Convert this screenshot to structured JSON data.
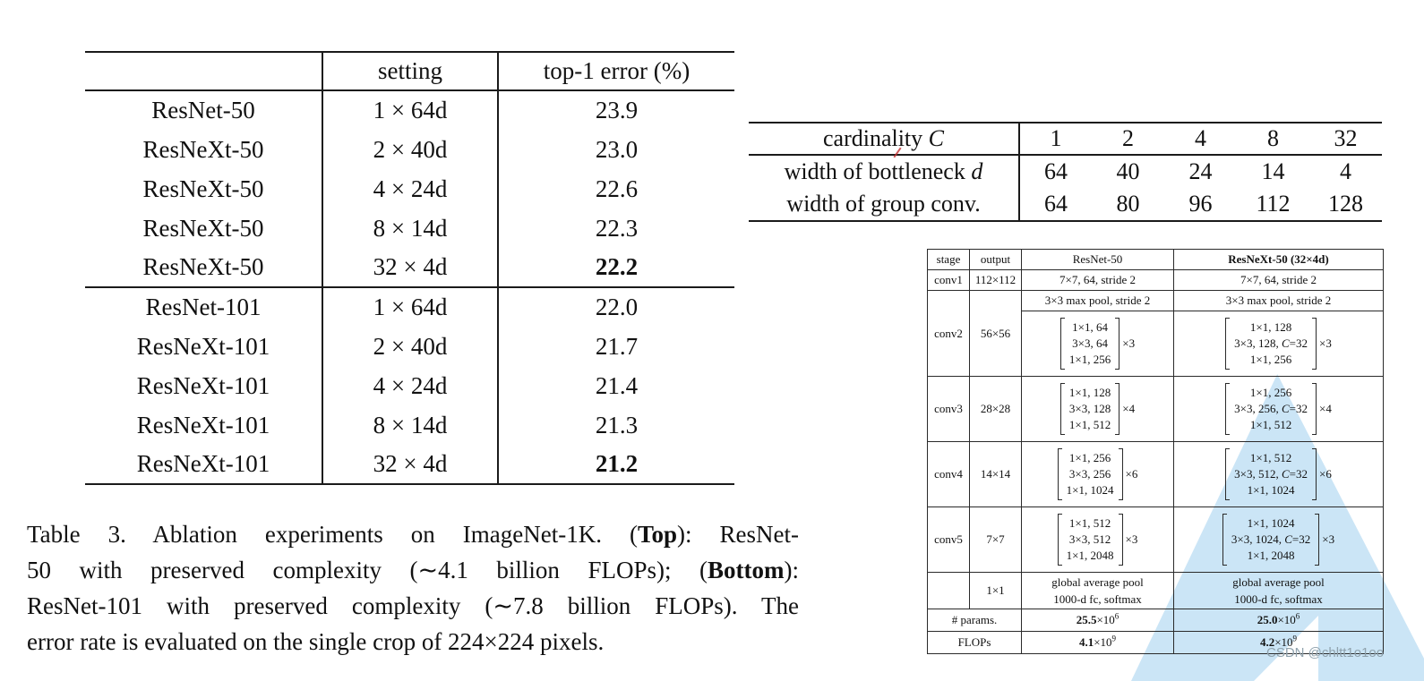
{
  "t3": {
    "header": {
      "setting": "setting",
      "error": "top-1 error (%)"
    },
    "rows": [
      {
        "model": "ResNet-50",
        "setting": "1 × 64d",
        "error": "23.9"
      },
      {
        "model": "ResNeXt-50",
        "setting": "2 × 40d",
        "error": "23.0"
      },
      {
        "model": "ResNeXt-50",
        "setting": "4 × 24d",
        "error": "22.6"
      },
      {
        "model": "ResNeXt-50",
        "setting": "8 × 14d",
        "error": "22.3"
      },
      {
        "model": "ResNeXt-50",
        "setting": "32 × 4d",
        "error": "22.2"
      },
      {
        "model": "ResNet-101",
        "setting": "1 × 64d",
        "error": "22.0"
      },
      {
        "model": "ResNeXt-101",
        "setting": "2 × 40d",
        "error": "21.7"
      },
      {
        "model": "ResNeXt-101",
        "setting": "4 × 24d",
        "error": "21.4"
      },
      {
        "model": "ResNeXt-101",
        "setting": "8 × 14d",
        "error": "21.3"
      },
      {
        "model": "ResNeXt-101",
        "setting": "32 × 4d",
        "error": "21.2"
      }
    ]
  },
  "caption_lines": [
    {
      "pre": "Table 3. Ablation experiments on ImageNet-1K. (",
      "bold": "Top",
      "post": "): ResNet-"
    },
    {
      "pre": "50 with preserved complexity (∼4.1 billion FLOPs); (",
      "bold": "Bottom",
      "post": "):"
    },
    {
      "pre": "ResNet-101 with preserved complexity (∼7.8 billion FLOPs). The",
      "bold": "",
      "post": ""
    },
    {
      "pre": "error rate is evaluated on the single crop of 224×224 pixels.",
      "bold": "",
      "post": ""
    }
  ],
  "card": {
    "rows": [
      {
        "pre": "cardinality ",
        "var": "C",
        "values": [
          "1",
          "2",
          "4",
          "8",
          "32"
        ]
      },
      {
        "pre": "width of bottleneck ",
        "var": "d",
        "values": [
          "64",
          "40",
          "24",
          "14",
          "4"
        ]
      },
      {
        "pre": "width of group conv.",
        "var": "",
        "values": [
          "64",
          "80",
          "96",
          "112",
          "128"
        ]
      }
    ]
  },
  "arch": {
    "header": {
      "stage": "stage",
      "output": "output",
      "col1": "ResNet-50",
      "col2": "ResNeXt-50 (32×4d)"
    },
    "conv1": {
      "stage": "conv1",
      "output": "112×112",
      "col1": "7×7, 64, stride 2",
      "col2": "7×7, 64, stride 2"
    },
    "maxpool": {
      "col1": "3×3 max pool, stride 2",
      "col2": "3×3 max pool, stride 2"
    },
    "conv2": {
      "stage": "conv2",
      "output": "56×56",
      "resnet": {
        "l1": "1×1, 64",
        "l2": "3×3, 64",
        "l3": "1×1, 256",
        "mult": "×3"
      },
      "resnext": {
        "l1": "1×1, 128",
        "l2pre": "3×3, 128, ",
        "l2var": "C",
        "l2post": "=32",
        "l3": "1×1, 256",
        "mult": "×3"
      }
    },
    "conv3": {
      "stage": "conv3",
      "output": "28×28",
      "resnet": {
        "l1": "1×1, 128",
        "l2": "3×3, 128",
        "l3": "1×1, 512",
        "mult": "×4"
      },
      "resnext": {
        "l1": "1×1, 256",
        "l2pre": "3×3, 256, ",
        "l2var": "C",
        "l2post": "=32",
        "l3": "1×1, 512",
        "mult": "×4"
      }
    },
    "conv4": {
      "stage": "conv4",
      "output": "14×14",
      "resnet": {
        "l1": "1×1, 256",
        "l2": "3×3, 256",
        "l3": "1×1, 1024",
        "mult": "×6"
      },
      "resnext": {
        "l1": "1×1, 512",
        "l2pre": "3×3, 512, ",
        "l2var": "C",
        "l2post": "=32",
        "l3": "1×1, 1024",
        "mult": "×6"
      }
    },
    "conv5": {
      "stage": "conv5",
      "output": "7×7",
      "resnet": {
        "l1": "1×1, 512",
        "l2": "3×3, 512",
        "l3": "1×1, 2048",
        "mult": "×3"
      },
      "resnext": {
        "l1": "1×1, 1024",
        "l2pre": "3×3, 1024, ",
        "l2var": "C",
        "l2post": "=32",
        "l3": "1×1, 2048",
        "mult": "×3"
      }
    },
    "avgpool": {
      "output": "1×1",
      "line1": "global average pool",
      "line2": "1000-d fc, softmax"
    },
    "params": {
      "label": "# params.",
      "col1": {
        "bold": "25.5",
        "base": "×10",
        "exp": "6"
      },
      "col2": {
        "bold": "25.0",
        "base": "×10",
        "exp": "6"
      }
    },
    "flops": {
      "label": "FLOPs",
      "col1": {
        "bold": "4.1",
        "base": "×10",
        "exp": "9"
      },
      "col2": {
        "bold": "4.2",
        "base": "×10",
        "exp": "9"
      }
    }
  },
  "watermark": "CSDN @chltt1o1oo"
}
